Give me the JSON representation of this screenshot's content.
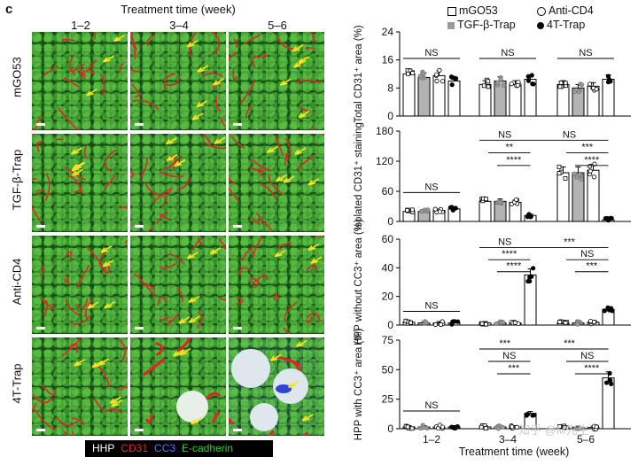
{
  "figure": {
    "panel_letter": "c",
    "microscopy": {
      "title": "Treatment time (week)",
      "columns": [
        "1–2",
        "3–4",
        "5–6"
      ],
      "rows": [
        "mGO53",
        "TGF-β-Trap",
        "Anti-CD4",
        "4T-Trap"
      ]
    },
    "stain_legend": [
      {
        "label": "HHP",
        "color": "#ffffff"
      },
      {
        "label": "CD31",
        "color": "#e8262b"
      },
      {
        "label": "CC3",
        "color": "#3b4fe0"
      },
      {
        "label": "E-cadherin",
        "color": "#2fd02f"
      }
    ],
    "watermark": "知乎 @M先生"
  },
  "chart_data": [
    {
      "type": "bar",
      "ylabel": "Total CD31⁺ area (%)",
      "ylim": [
        0,
        24
      ],
      "yticks": [
        "0",
        "8",
        "16",
        "24"
      ],
      "categories": [
        "1–2",
        "3–4",
        "5–6"
      ],
      "series": [
        {
          "name": "mGO53",
          "values": [
            12,
            9,
            9
          ]
        },
        {
          "name": "TGF-β-Trap",
          "values": [
            11,
            10,
            8
          ]
        },
        {
          "name": "Anti-CD4",
          "values": [
            11.5,
            9,
            8.5
          ]
        },
        {
          "name": "4T-Trap",
          "values": [
            10,
            10.5,
            10.5
          ]
        }
      ],
      "annotations": [
        {
          "text": "NS",
          "group": 0
        },
        {
          "text": "NS",
          "group": 1
        },
        {
          "text": "NS",
          "group": 2
        }
      ]
    },
    {
      "type": "bar",
      "ylabel": "Isolated CD31⁺ staining",
      "ylim": [
        0,
        180
      ],
      "yticks": [
        "0",
        "60",
        "120",
        "180"
      ],
      "categories": [
        "1–2",
        "3–4",
        "5–6"
      ],
      "series": [
        {
          "name": "mGO53",
          "values": [
            20,
            40,
            97
          ]
        },
        {
          "name": "TGF-β-Trap",
          "values": [
            20,
            40,
            97
          ]
        },
        {
          "name": "Anti-CD4",
          "values": [
            22,
            38,
            102
          ]
        },
        {
          "name": "4T-Trap",
          "values": [
            25,
            12,
            3
          ]
        }
      ],
      "annotations": [
        {
          "text": "NS",
          "group": 0
        },
        {
          "text": "NS"
        },
        {
          "text": "**"
        },
        {
          "text": "****"
        },
        {
          "text": "NS"
        },
        {
          "text": "***"
        },
        {
          "text": "****"
        }
      ]
    },
    {
      "type": "bar",
      "ylabel": "HPP without CC3⁺ area (%)",
      "ylim": [
        0,
        60
      ],
      "yticks": [
        "0",
        "20",
        "40",
        "60"
      ],
      "categories": [
        "1–2",
        "3–4",
        "5–6"
      ],
      "series": [
        {
          "name": "mGO53",
          "values": [
            2,
            1.5,
            1.5
          ]
        },
        {
          "name": "TGF-β-Trap",
          "values": [
            1.5,
            1.5,
            1.5
          ]
        },
        {
          "name": "Anti-CD4",
          "values": [
            1.5,
            1.5,
            2
          ]
        },
        {
          "name": "4T-Trap",
          "values": [
            1.5,
            35,
            11
          ]
        }
      ],
      "annotations": [
        {
          "text": "NS",
          "group": 0
        },
        {
          "text": "NS"
        },
        {
          "text": "****"
        },
        {
          "text": "****"
        },
        {
          "text": "***"
        },
        {
          "text": "NS"
        },
        {
          "text": "***"
        }
      ]
    },
    {
      "type": "bar",
      "ylabel": "HPP with CC3⁺ area (%)",
      "ylim": [
        0,
        75
      ],
      "yticks": [
        "0",
        "25",
        "50",
        "75"
      ],
      "categories": [
        "1–2",
        "3–4",
        "5–6"
      ],
      "series": [
        {
          "name": "mGO53",
          "values": [
            1.5,
            1.5,
            1
          ]
        },
        {
          "name": "TGF-β-Trap",
          "values": [
            1.5,
            1.5,
            1
          ]
        },
        {
          "name": "Anti-CD4",
          "values": [
            1.5,
            1.5,
            1
          ]
        },
        {
          "name": "4T-Trap",
          "values": [
            1.5,
            13,
            43
          ]
        }
      ],
      "annotations": [
        {
          "text": "NS",
          "group": 0
        },
        {
          "text": "***"
        },
        {
          "text": "NS"
        },
        {
          "text": "***"
        },
        {
          "text": "***"
        },
        {
          "text": "NS"
        },
        {
          "text": "****"
        }
      ],
      "xlabel": "Treatment time (week)"
    }
  ]
}
